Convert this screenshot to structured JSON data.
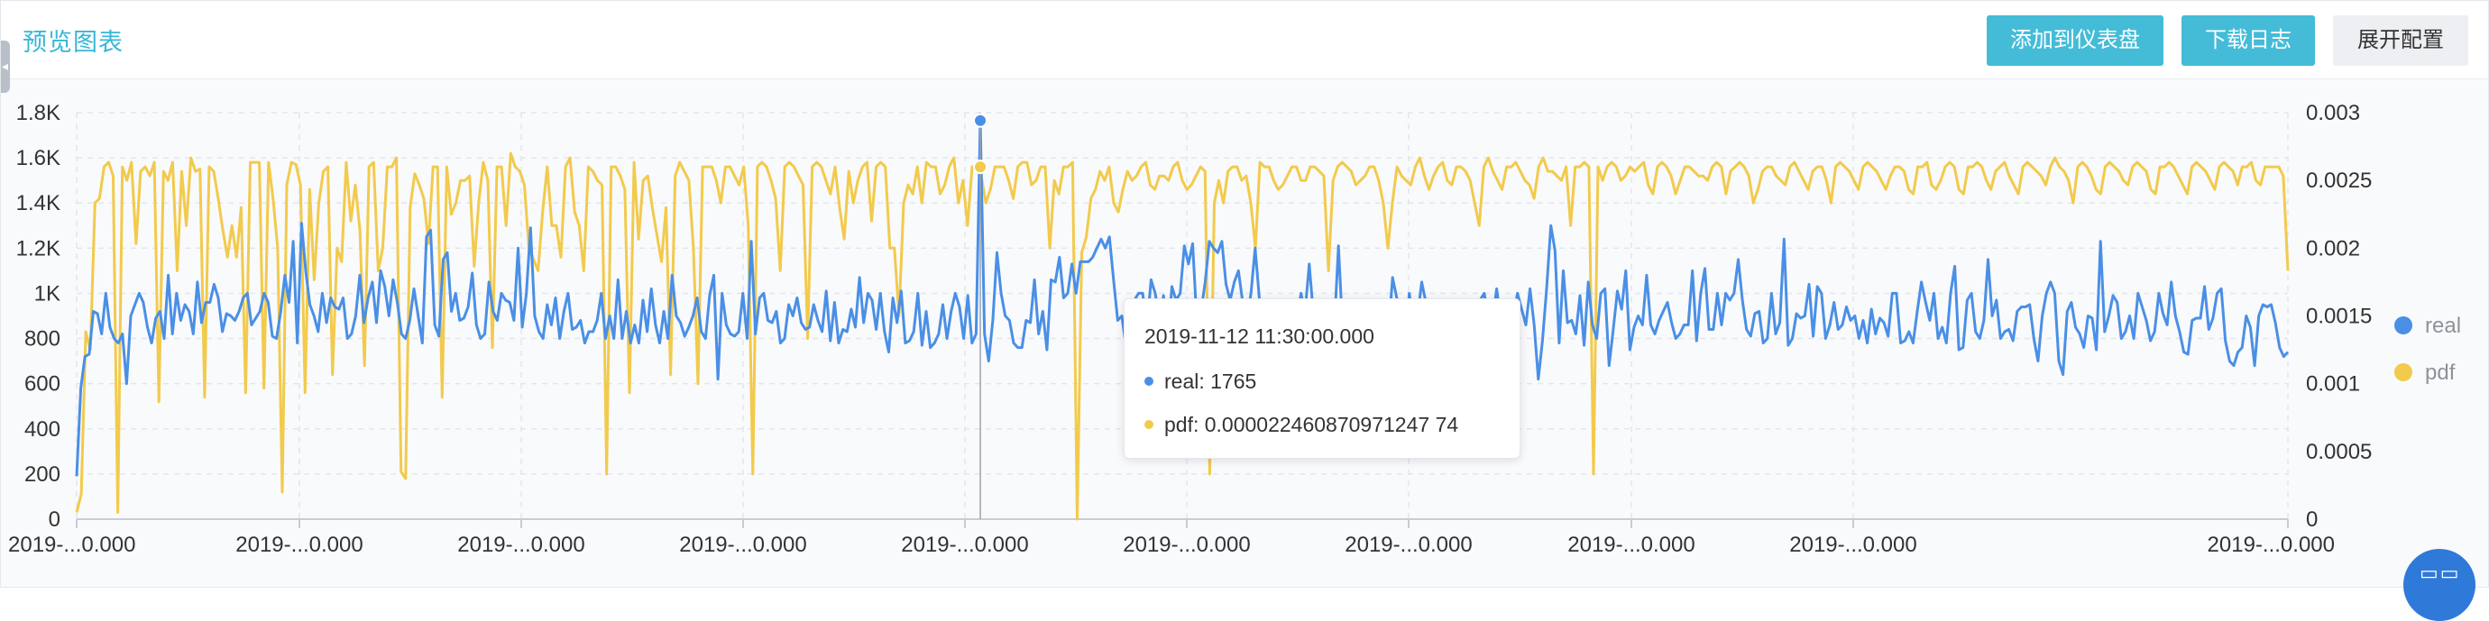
{
  "header": {
    "title": "预览图表",
    "buttons": {
      "add_dashboard": "添加到仪表盘",
      "download_log": "下载日志",
      "expand_config": "展开配置"
    }
  },
  "colors": {
    "real": "#4a8fe6",
    "pdf": "#f2ca4c",
    "accent": "#44bcd8",
    "grid": "#e3e6eb"
  },
  "tooltip": {
    "time": "2019-11-12 11:30:00.000",
    "real": "real: 1765",
    "pdf": "pdf: 0.000022460870971247 74"
  },
  "icons": {
    "corner": "grid-icon",
    "collapse": "arrow-left-icon"
  },
  "chart_data": {
    "type": "line",
    "x_tick_labels": [
      "2019-...0.000",
      "2019-...0.000",
      "2019-...0.000",
      "2019-...0.000",
      "2019-...0.000",
      "2019-...0.000",
      "2019-...0.000",
      "2019-...0.000",
      "2019-...0.000",
      "2019-...0.000"
    ],
    "y_left": {
      "ticks": [
        "0",
        "200",
        "400",
        "600",
        "800",
        "1K",
        "1.2K",
        "1.4K",
        "1.6K",
        "1.8K"
      ],
      "range": [
        0,
        1800
      ]
    },
    "y_right": {
      "ticks": [
        "0",
        "0.0005",
        "0.001",
        "0.0015",
        "0.002",
        "0.0025",
        "0.003"
      ],
      "range": [
        0,
        0.003
      ]
    },
    "legend": [
      "real",
      "pdf"
    ],
    "legend_position": "right",
    "grid": true,
    "series": [
      {
        "name": "real",
        "axis": "left",
        "values": [
          190,
          580,
          720,
          730,
          920,
          910,
          820,
          1000,
          850,
          800,
          780,
          820,
          600,
          900,
          950,
          1000,
          960,
          850,
          780,
          890,
          920,
          800,
          1080,
          820,
          1000,
          880,
          950,
          920,
          820,
          1050,
          870,
          960,
          960,
          1040,
          980,
          830,
          910,
          900,
          880,
          920,
          980,
          1000,
          860,
          890,
          920,
          1000,
          960,
          810,
          800,
          920,
          1080,
          960,
          1230,
          780,
          1310,
          1100,
          950,
          900,
          830,
          1000,
          870,
          980,
          940,
          930,
          980,
          800,
          820,
          900,
          1080,
          870,
          980,
          1050,
          870,
          1100,
          1030,
          900,
          1060,
          960,
          820,
          800,
          880,
          1020,
          900,
          780,
          1250,
          1280,
          860,
          810,
          1150,
          1180,
          920,
          1000,
          880,
          890,
          940,
          1090,
          860,
          800,
          820,
          1050,
          920,
          880,
          1000,
          970,
          960,
          880,
          1200,
          850,
          1000,
          1290,
          900,
          830,
          800,
          950,
          860,
          980,
          800,
          920,
          1000,
          840,
          850,
          880,
          780,
          830,
          830,
          880,
          1000,
          800,
          900,
          800,
          1060,
          800,
          920,
          780,
          860,
          780,
          970,
          830,
          1020,
          860,
          780,
          920,
          800,
          1080,
          900,
          870,
          810,
          850,
          900,
          980,
          830,
          800,
          990,
          1080,
          620,
          1000,
          860,
          820,
          810,
          830,
          1000,
          800,
          1230,
          820,
          980,
          1000,
          880,
          870,
          920,
          780,
          800,
          950,
          900,
          980,
          870,
          840,
          850,
          950,
          880,
          830,
          1010,
          790,
          960,
          780,
          840,
          830,
          930,
          850,
          1070,
          870,
          1000,
          970,
          840,
          1000,
          830,
          740,
          980,
          870,
          1010,
          780,
          790,
          830,
          1000,
          770,
          920,
          760,
          780,
          820,
          950,
          800,
          920,
          1000,
          940,
          800,
          990,
          780,
          820,
          1765,
          820,
          700,
          880,
          1180,
          1000,
          900,
          880,
          780,
          760,
          760,
          880,
          870,
          1060,
          820,
          920,
          750,
          1060,
          1050,
          1160,
          980,
          1000,
          1130,
          1000,
          1140,
          1140,
          1140,
          1160,
          1200,
          1240,
          1200,
          1250,
          1060,
          880,
          900,
          760,
          920,
          970,
          1000,
          1000,
          840,
          1060,
          1000,
          880,
          990,
          780,
          1030,
          970,
          1000,
          1210,
          1130,
          1220,
          870,
          920,
          1050,
          1230,
          1200,
          1180,
          1230,
          1040,
          970,
          1050,
          1100,
          960,
          880,
          1000,
          1200,
          980,
          760,
          970,
          880,
          950,
          960,
          920,
          880,
          910,
          860,
          1000,
          920,
          1130,
          900,
          940,
          840,
          840,
          840,
          840,
          1210,
          840,
          880,
          900,
          820,
          720,
          960,
          960,
          880,
          800,
          920,
          850,
          820,
          1070,
          980,
          920,
          740,
          1000,
          880,
          900,
          1050,
          960,
          830,
          910,
          800,
          890,
          930,
          830,
          760,
          880,
          960,
          950,
          880,
          820,
          970,
          1000,
          900,
          880,
          1020,
          880,
          870,
          700,
          900,
          1000,
          930,
          860,
          1020,
          860,
          620,
          790,
          1020,
          1300,
          1190,
          780,
          1100,
          870,
          880,
          820,
          990,
          770,
          1050,
          860,
          800,
          1000,
          1020,
          680,
          840,
          1010,
          930,
          1100,
          750,
          850,
          900,
          860,
          1080,
          860,
          820,
          880,
          920,
          960,
          870,
          800,
          820,
          860,
          860,
          1100,
          790,
          1000,
          1110,
          840,
          840,
          1000,
          860,
          1000,
          970,
          1000,
          1150,
          970,
          840,
          810,
          910,
          920,
          780,
          800,
          1000,
          820,
          870,
          1240,
          770,
          800,
          910,
          890,
          900,
          1040,
          810,
          1030,
          1000,
          800,
          860,
          960,
          840,
          860,
          940,
          880,
          900,
          800,
          880,
          780,
          930,
          820,
          890,
          870,
          810,
          1000,
          1000,
          780,
          790,
          830,
          780,
          920,
          1050,
          960,
          880,
          1000,
          800,
          850,
          780,
          1000,
          1120,
          750,
          760,
          970,
          1000,
          830,
          800,
          880,
          1150,
          900,
          970,
          800,
          830,
          840,
          790,
          920,
          940,
          940,
          950,
          800,
          700,
          900,
          1000,
          1050,
          1000,
          700,
          640,
          920,
          960,
          850,
          820,
          760,
          900,
          890,
          750,
          1230,
          830,
          900,
          990,
          960,
          800,
          830,
          900,
          800,
          1000,
          940,
          880,
          790,
          830,
          1000,
          910,
          860,
          1050,
          900,
          830,
          740,
          730,
          880,
          890,
          890,
          1030,
          840,
          890,
          1000,
          1020,
          790,
          700,
          680,
          740,
          760,
          900,
          850,
          680,
          900,
          950,
          940,
          950,
          870,
          760,
          720,
          740
        ]
      },
      {
        "name": "pdf",
        "axis": "left",
        "values": [
          30,
          110,
          830,
          750,
          1400,
          1420,
          1560,
          1580,
          1520,
          30,
          1560,
          1500,
          1580,
          1220,
          1540,
          1560,
          1520,
          1580,
          520,
          1540,
          1500,
          1580,
          1100,
          1540,
          1300,
          1600,
          1540,
          1550,
          540,
          1560,
          1540,
          1420,
          1280,
          1160,
          1300,
          1160,
          1380,
          560,
          1580,
          1580,
          1580,
          580,
          1580,
          1420,
          1200,
          120,
          1480,
          1580,
          1570,
          1480,
          560,
          1460,
          1060,
          1400,
          1540,
          1560,
          640,
          1200,
          1140,
          1580,
          1320,
          1480,
          1280,
          680,
          1560,
          1580,
          1100,
          1200,
          1560,
          1560,
          1600,
          210,
          180,
          1380,
          1530,
          1480,
          1420,
          1220,
          1560,
          1560,
          540,
          1560,
          1350,
          1400,
          1500,
          1500,
          1520,
          1120,
          1400,
          1580,
          1500,
          760,
          1560,
          1560,
          1300,
          1620,
          1560,
          1540,
          1480,
          1200,
          1150,
          1100,
          1360,
          1560,
          1300,
          1300,
          1160,
          1560,
          1600,
          1360,
          1300,
          1100,
          1560,
          1540,
          1500,
          1480,
          200,
          1560,
          1560,
          1520,
          1460,
          560,
          1580,
          1240,
          1500,
          1520,
          1380,
          1260,
          1140,
          1380,
          640,
          1520,
          1580,
          1540,
          1500,
          1200,
          600,
          1560,
          1560,
          1560,
          1500,
          1400,
          1560,
          1560,
          1520,
          1480,
          1560,
          1300,
          200,
          1560,
          1580,
          1560,
          1500,
          1420,
          1100,
          1560,
          1580,
          1560,
          1520,
          1480,
          800,
          1560,
          1580,
          1560,
          1500,
          1440,
          1560,
          1380,
          1240,
          1540,
          1400,
          1500,
          1560,
          1580,
          1320,
          1560,
          1580,
          1560,
          1200,
          1200,
          900,
          1400,
          1480,
          1440,
          1560,
          1400,
          1580,
          1560,
          1560,
          1440,
          1480,
          1560,
          1600,
          1400,
          1500,
          1300,
          1560,
          1560,
          1520,
          1400,
          1460,
          1560,
          1560,
          1560,
          1500,
          1420,
          1560,
          1580,
          1580,
          1480,
          1500,
          1560,
          1560,
          1200,
          1500,
          1440,
          1560,
          1560,
          1580,
          0,
          1180,
          1250,
          1420,
          1460,
          1540,
          1500,
          1560,
          1400,
          1360,
          1460,
          1540,
          1500,
          1520,
          1560,
          1580,
          1480,
          1460,
          1520,
          1520,
          1500,
          1560,
          1580,
          1500,
          1460,
          1480,
          1520,
          1560,
          1540,
          200,
          1400,
          1500,
          1400,
          1540,
          1560,
          1560,
          1500,
          1520,
          1400,
          1200,
          1580,
          1560,
          1560,
          1500,
          1460,
          1480,
          1520,
          1560,
          1560,
          1500,
          1500,
          1560,
          1560,
          1540,
          1520,
          1100,
          1500,
          1560,
          1580,
          1560,
          1540,
          1480,
          1500,
          1520,
          1560,
          1560,
          1500,
          1400,
          1200,
          1400,
          1560,
          1520,
          1500,
          1480,
          1560,
          1600,
          1520,
          1460,
          1520,
          1560,
          1580,
          1500,
          1480,
          1560,
          1560,
          1540,
          1500,
          1400,
          1300,
          1560,
          1600,
          1540,
          1500,
          1460,
          1560,
          1560,
          1580,
          1540,
          1500,
          1480,
          1420,
          1560,
          1600,
          1540,
          1540,
          1520,
          1500,
          1560,
          1300,
          1560,
          1560,
          1580,
          1560,
          200,
          1560,
          1500,
          1560,
          1580,
          1560,
          1500,
          1520,
          1560,
          1540,
          1560,
          1580,
          1480,
          1440,
          1560,
          1580,
          1560,
          1520,
          1440,
          1500,
          1560,
          1560,
          1540,
          1520,
          1520,
          1500,
          1560,
          1580,
          1560,
          1440,
          1540,
          1560,
          1580,
          1560,
          1520,
          1400,
          1460,
          1540,
          1560,
          1560,
          1520,
          1500,
          1480,
          1560,
          1580,
          1540,
          1500,
          1460,
          1540,
          1560,
          1560,
          1500,
          1400,
          1560,
          1580,
          1560,
          1540,
          1500,
          1460,
          1560,
          1580,
          1560,
          1540,
          1500,
          1460,
          1520,
          1560,
          1560,
          1540,
          1460,
          1440,
          1560,
          1560,
          1580,
          1480,
          1460,
          1500,
          1560,
          1580,
          1560,
          1460,
          1440,
          1560,
          1560,
          1580,
          1560,
          1500,
          1460,
          1540,
          1560,
          1580,
          1520,
          1480,
          1440,
          1560,
          1580,
          1560,
          1540,
          1520,
          1480,
          1560,
          1600,
          1560,
          1540,
          1500,
          1400,
          1560,
          1580,
          1560,
          1520,
          1460,
          1440,
          1560,
          1580,
          1560,
          1540,
          1500,
          1480,
          1560,
          1580,
          1560,
          1540,
          1460,
          1440,
          1560,
          1560,
          1580,
          1560,
          1520,
          1480,
          1440,
          1560,
          1580,
          1560,
          1540,
          1500,
          1460,
          1560,
          1580,
          1560,
          1540,
          1480,
          1560,
          1560,
          1580,
          1500,
          1480,
          1560,
          1560,
          1560,
          1560,
          1520,
          1100
        ]
      }
    ]
  }
}
